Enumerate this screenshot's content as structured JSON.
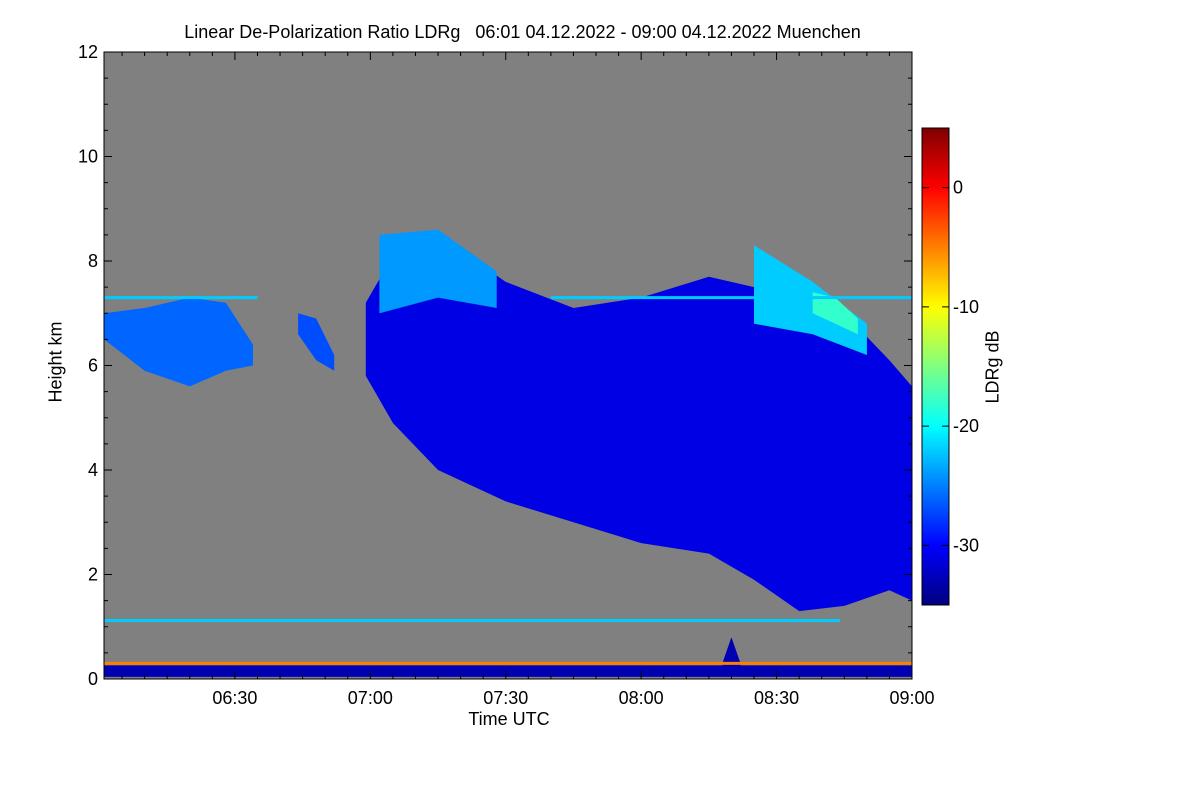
{
  "chart_data": {
    "type": "heatmap",
    "title": "Linear De-Polarization Ratio LDRg   06:01 04.12.2022 - 09:00 04.12.2022 Muenchen",
    "xlabel": "Time UTC",
    "ylabel": "Height km",
    "colorbar_label": "LDRg dB",
    "x_range": [
      "06:01",
      "09:00"
    ],
    "x_ticks": [
      "06:30",
      "07:00",
      "07:30",
      "08:00",
      "08:30",
      "09:00"
    ],
    "y_range": [
      0,
      12
    ],
    "y_ticks": [
      0,
      2,
      4,
      6,
      8,
      10,
      12
    ],
    "colorbar_range": [
      -35,
      5
    ],
    "colorbar_ticks": [
      0,
      -10,
      -20,
      -30
    ],
    "background_color": "#808080",
    "colormap": [
      "#00007f",
      "#0000ff",
      "#0080ff",
      "#00ffff",
      "#80ff80",
      "#ffff00",
      "#ff8000",
      "#ff0000",
      "#7f0000"
    ],
    "layers": [
      {
        "feature": "main ice cloud",
        "ldr_db": -31,
        "top": [
          [
            "06:59",
            7.2
          ],
          [
            "07:05",
            8.1
          ],
          [
            "07:15",
            8.5
          ],
          [
            "07:30",
            7.6
          ],
          [
            "07:45",
            7.1
          ],
          [
            "08:00",
            7.3
          ],
          [
            "08:15",
            7.7
          ],
          [
            "08:25",
            7.5
          ],
          [
            "08:35",
            7.6
          ],
          [
            "08:45",
            7.0
          ],
          [
            "08:55",
            6.1
          ],
          [
            "09:00",
            5.6
          ]
        ],
        "base": [
          [
            "06:59",
            5.8
          ],
          [
            "07:05",
            4.9
          ],
          [
            "07:15",
            4.0
          ],
          [
            "07:30",
            3.4
          ],
          [
            "07:45",
            3.0
          ],
          [
            "08:00",
            2.6
          ],
          [
            "08:15",
            2.4
          ],
          [
            "08:25",
            1.9
          ],
          [
            "08:35",
            1.3
          ],
          [
            "08:45",
            1.4
          ],
          [
            "08:55",
            1.7
          ],
          [
            "09:00",
            1.5
          ]
        ]
      },
      {
        "feature": "early cloud patch",
        "ldr_db": -26,
        "top": [
          [
            "06:01",
            7.0
          ],
          [
            "06:10",
            7.1
          ],
          [
            "06:20",
            7.3
          ],
          [
            "06:28",
            7.2
          ],
          [
            "06:34",
            6.4
          ]
        ],
        "base": [
          [
            "06:01",
            6.5
          ],
          [
            "06:10",
            5.9
          ],
          [
            "06:20",
            5.6
          ],
          [
            "06:28",
            5.9
          ],
          [
            "06:34",
            6.0
          ]
        ]
      },
      {
        "feature": "small patch",
        "ldr_db": -27,
        "top": [
          [
            "06:44",
            7.0
          ],
          [
            "06:48",
            6.9
          ],
          [
            "06:52",
            6.2
          ]
        ],
        "base": [
          [
            "06:44",
            6.6
          ],
          [
            "06:48",
            6.1
          ],
          [
            "06:52",
            5.9
          ]
        ]
      },
      {
        "feature": "cloud top region",
        "ldr_db": -24,
        "top": [
          [
            "07:02",
            8.5
          ],
          [
            "07:15",
            8.6
          ],
          [
            "07:28",
            7.8
          ]
        ],
        "base": [
          [
            "07:02",
            7.0
          ],
          [
            "07:15",
            7.3
          ],
          [
            "07:28",
            7.1
          ]
        ]
      },
      {
        "feature": "upper cloud region",
        "ldr_db": -22,
        "top": [
          [
            "08:25",
            8.3
          ],
          [
            "08:38",
            7.6
          ],
          [
            "08:50",
            6.8
          ]
        ],
        "base": [
          [
            "08:25",
            6.8
          ],
          [
            "08:38",
            6.6
          ],
          [
            "08:50",
            6.2
          ]
        ]
      },
      {
        "feature": "upper cloud region",
        "ldr_db": -18,
        "top": [
          [
            "08:38",
            7.4
          ],
          [
            "08:43",
            7.3
          ],
          [
            "08:48",
            6.9
          ]
        ],
        "base": [
          [
            "08:38",
            7.0
          ],
          [
            "08:43",
            6.8
          ],
          [
            "08:48",
            6.6
          ]
        ]
      },
      {
        "feature": "near-surface layer",
        "ldr_db": -33,
        "top": [
          [
            "06:01",
            0.26
          ],
          [
            "09:00",
            0.26
          ]
        ],
        "base": [
          [
            "06:01",
            0.04
          ],
          [
            "09:00",
            0.04
          ]
        ]
      },
      {
        "feature": "near-surface spike",
        "ldr_db": -33,
        "top": [
          [
            "08:18",
            0.3
          ],
          [
            "08:20",
            0.8
          ],
          [
            "08:22",
            0.3
          ]
        ],
        "base": [
          [
            "08:18",
            0.1
          ],
          [
            "08:20",
            0.1
          ],
          [
            "08:22",
            0.1
          ]
        ]
      }
    ],
    "lines": [
      {
        "ldr_db": -5,
        "height_km": 0.3,
        "from": "06:01",
        "to": "09:00"
      },
      {
        "ldr_db": -22,
        "height_km": 1.12,
        "from": "06:01",
        "to": "08:44"
      },
      {
        "ldr_db": -22,
        "height_km": 7.3,
        "from": "06:01",
        "to": "06:35"
      },
      {
        "ldr_db": -22,
        "height_km": 7.3,
        "from": "07:40",
        "to": "09:00"
      }
    ]
  }
}
